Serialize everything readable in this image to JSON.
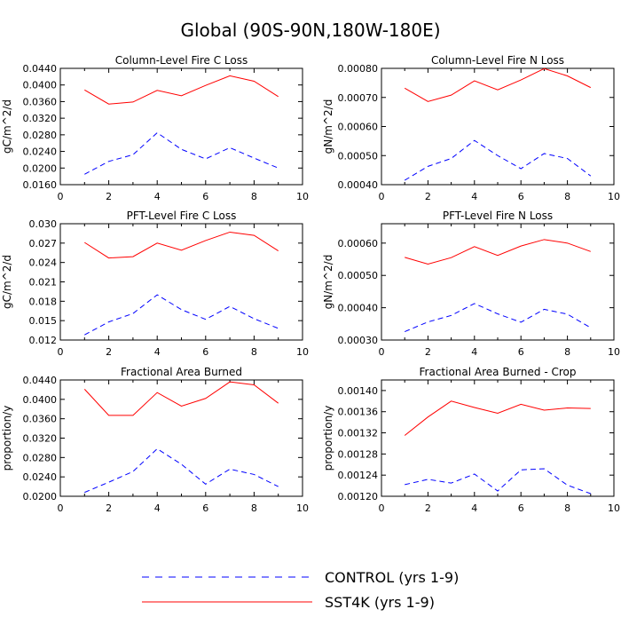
{
  "figure": {
    "title": "Global (90S-90N,180W-180E)",
    "colors": {
      "control": "#0000ff",
      "sst4k": "#ff0000",
      "axis": "#000000"
    },
    "legend": [
      {
        "label": "CONTROL (yrs 1-9)",
        "style": "dashed",
        "color": "#0000ff"
      },
      {
        "label": "SST4K (yrs 1-9)",
        "style": "solid",
        "color": "#ff0000"
      }
    ]
  },
  "chart_data": [
    {
      "type": "line",
      "title": "Column-Level Fire C Loss",
      "ylabel": "gC/m^2/d",
      "xlabel": "",
      "xlim": [
        0,
        10
      ],
      "ylim": [
        0.016,
        0.044
      ],
      "xticks": [
        "0",
        "2",
        "4",
        "6",
        "8",
        "10"
      ],
      "yticks": [
        "0.0160",
        "0.0200",
        "0.0240",
        "0.0280",
        "0.0320",
        "0.0360",
        "0.0400",
        "0.0440"
      ],
      "x": [
        1,
        2,
        3,
        4,
        5,
        6,
        7,
        8,
        9
      ],
      "series": [
        {
          "name": "CONTROL (yrs 1-9)",
          "values": [
            0.0185,
            0.0216,
            0.0232,
            0.0285,
            0.0245,
            0.0222,
            0.0249,
            0.0224,
            0.02
          ]
        },
        {
          "name": "SST4K (yrs 1-9)",
          "values": [
            0.0388,
            0.0354,
            0.0359,
            0.0387,
            0.0374,
            0.0399,
            0.0422,
            0.0409,
            0.0372
          ]
        }
      ]
    },
    {
      "type": "line",
      "title": "Column-Level Fire N Loss",
      "ylabel": "gN/m^2/d",
      "xlabel": "",
      "xlim": [
        0,
        10
      ],
      "ylim": [
        0.0004,
        0.0008
      ],
      "xticks": [
        "0",
        "2",
        "4",
        "6",
        "8",
        "10"
      ],
      "yticks": [
        "0.00040",
        "0.00050",
        "0.00060",
        "0.00070",
        "0.00080"
      ],
      "x": [
        1,
        2,
        3,
        4,
        5,
        6,
        7,
        8,
        9
      ],
      "series": [
        {
          "name": "CONTROL (yrs 1-9)",
          "values": [
            0.000415,
            0.000463,
            0.00049,
            0.000552,
            0.0005,
            0.000455,
            0.000507,
            0.00049,
            0.00043
          ]
        },
        {
          "name": "SST4K (yrs 1-9)",
          "values": [
            0.000732,
            0.000686,
            0.000708,
            0.000757,
            0.000726,
            0.00076,
            0.000799,
            0.000774,
            0.000734
          ]
        }
      ]
    },
    {
      "type": "line",
      "title": "PFT-Level Fire C Loss",
      "ylabel": "gC/m^2/d",
      "xlabel": "",
      "xlim": [
        0,
        10
      ],
      "ylim": [
        0.012,
        0.03
      ],
      "xticks": [
        "0",
        "2",
        "4",
        "6",
        "8",
        "10"
      ],
      "yticks": [
        "0.012",
        "0.015",
        "0.018",
        "0.021",
        "0.024",
        "0.027",
        "0.030"
      ],
      "x": [
        1,
        2,
        3,
        4,
        5,
        6,
        7,
        8,
        9
      ],
      "series": [
        {
          "name": "CONTROL (yrs 1-9)",
          "values": [
            0.0128,
            0.0148,
            0.0161,
            0.019,
            0.0167,
            0.0152,
            0.0172,
            0.0153,
            0.0138
          ]
        },
        {
          "name": "SST4K (yrs 1-9)",
          "values": [
            0.0271,
            0.0247,
            0.0249,
            0.027,
            0.0259,
            0.0274,
            0.0287,
            0.0282,
            0.0258
          ]
        }
      ]
    },
    {
      "type": "line",
      "title": "PFT-Level Fire N Loss",
      "ylabel": "gN/m^2/d",
      "xlabel": "",
      "xlim": [
        0,
        10
      ],
      "ylim": [
        0.0003,
        0.00066
      ],
      "xticks": [
        "0",
        "2",
        "4",
        "6",
        "8",
        "10"
      ],
      "yticks": [
        "0.00030",
        "0.00040",
        "0.00050",
        "0.00060"
      ],
      "x": [
        1,
        2,
        3,
        4,
        5,
        6,
        7,
        8,
        9
      ],
      "series": [
        {
          "name": "CONTROL (yrs 1-9)",
          "values": [
            0.000326,
            0.000356,
            0.000376,
            0.000413,
            0.000381,
            0.000355,
            0.000395,
            0.00038,
            0.000338
          ]
        },
        {
          "name": "SST4K (yrs 1-9)",
          "values": [
            0.000556,
            0.000535,
            0.000555,
            0.000589,
            0.000562,
            0.000591,
            0.000611,
            0.0006,
            0.000574
          ]
        }
      ]
    },
    {
      "type": "line",
      "title": "Fractional Area Burned",
      "ylabel": "proportion/y",
      "xlabel": "",
      "xlim": [
        0,
        10
      ],
      "ylim": [
        0.02,
        0.044
      ],
      "xticks": [
        "0",
        "2",
        "4",
        "6",
        "8",
        "10"
      ],
      "yticks": [
        "0.0200",
        "0.0240",
        "0.0280",
        "0.0320",
        "0.0360",
        "0.0400",
        "0.0440"
      ],
      "x": [
        1,
        2,
        3,
        4,
        5,
        6,
        7,
        8,
        9
      ],
      "series": [
        {
          "name": "CONTROL (yrs 1-9)",
          "values": [
            0.0208,
            0.0229,
            0.0251,
            0.0298,
            0.0266,
            0.0225,
            0.0256,
            0.0245,
            0.022
          ]
        },
        {
          "name": "SST4K (yrs 1-9)",
          "values": [
            0.0421,
            0.0367,
            0.0367,
            0.0414,
            0.0386,
            0.0402,
            0.0436,
            0.043,
            0.0392
          ]
        }
      ]
    },
    {
      "type": "line",
      "title": "Fractional Area Burned - Crop",
      "ylabel": "proportion/y",
      "xlabel": "",
      "xlim": [
        0,
        10
      ],
      "ylim": [
        0.0012,
        0.00142
      ],
      "xticks": [
        "0",
        "2",
        "4",
        "6",
        "8",
        "10"
      ],
      "yticks": [
        "0.00120",
        "0.00124",
        "0.00128",
        "0.00132",
        "0.00136",
        "0.00140"
      ],
      "x": [
        1,
        2,
        3,
        4,
        5,
        6,
        7,
        8,
        9
      ],
      "series": [
        {
          "name": "CONTROL (yrs 1-9)",
          "values": [
            0.001222,
            0.001232,
            0.001225,
            0.001242,
            0.00121,
            0.00125,
            0.001252,
            0.001221,
            0.001205
          ]
        },
        {
          "name": "SST4K (yrs 1-9)",
          "values": [
            0.001315,
            0.00135,
            0.00138,
            0.001368,
            0.001357,
            0.001374,
            0.001363,
            0.001367,
            0.001366
          ]
        }
      ]
    }
  ]
}
